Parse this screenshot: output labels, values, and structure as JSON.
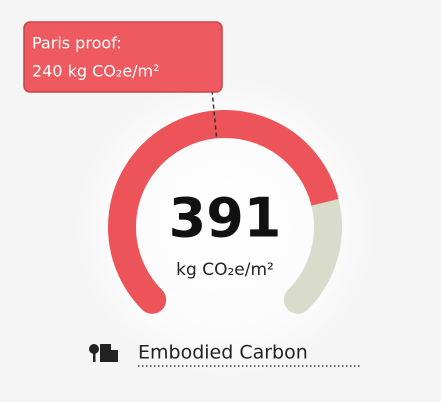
{
  "chart_data": {
    "type": "gauge",
    "value": 391,
    "unit": "kg CO₂e/m²",
    "ylim": [
      0,
      500
    ],
    "color": "#ec5459",
    "track_color": "#d9dccb",
    "target": {
      "label": "Paris proof:",
      "value": 240,
      "value_label": "240 kg CO₂e/m²"
    },
    "footer": "Embodied Carbon"
  }
}
